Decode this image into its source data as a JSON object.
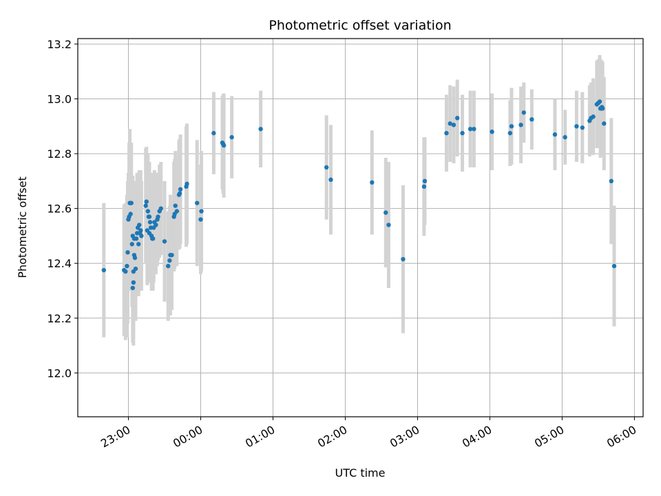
{
  "chart_data": {
    "type": "scatter",
    "title": "Photometric offset variation",
    "xlabel": "UTC time",
    "ylabel": "Photometric offset",
    "x_unit": "UTC hours (22:00 = 22, 06:00 = 30)",
    "xlim": [
      22.3,
      30.12
    ],
    "ylim": [
      11.84,
      13.22
    ],
    "grid": true,
    "legend": "none",
    "x_ticks": [
      {
        "value": 23,
        "label": "23:00"
      },
      {
        "value": 24,
        "label": "00:00"
      },
      {
        "value": 25,
        "label": "01:00"
      },
      {
        "value": 26,
        "label": "02:00"
      },
      {
        "value": 27,
        "label": "03:00"
      },
      {
        "value": 28,
        "label": "04:00"
      },
      {
        "value": 29,
        "label": "05:00"
      },
      {
        "value": 30,
        "label": "06:00"
      }
    ],
    "y_ticks": [
      {
        "value": 12.0,
        "label": "12.0"
      },
      {
        "value": 12.2,
        "label": "12.2"
      },
      {
        "value": 12.4,
        "label": "12.4"
      },
      {
        "value": 12.6,
        "label": "12.6"
      },
      {
        "value": 12.8,
        "label": "12.8"
      },
      {
        "value": 13.0,
        "label": "13.0"
      },
      {
        "value": 13.2,
        "label": "13.2"
      }
    ],
    "colors": {
      "marker": "#1f77b4",
      "errorbar": "#d3d3d3",
      "grid": "#b0b0b0"
    },
    "series": [
      {
        "points": [
          [
            22.66,
            12.375,
            0.245
          ],
          [
            22.94,
            12.375,
            0.24
          ],
          [
            22.96,
            12.37,
            0.25
          ],
          [
            22.98,
            12.39,
            0.26
          ],
          [
            22.99,
            12.44,
            0.26
          ],
          [
            23.0,
            12.56,
            0.17
          ],
          [
            23.01,
            12.57,
            0.27
          ],
          [
            23.02,
            12.62,
            0.27
          ],
          [
            23.03,
            12.58,
            0.23
          ],
          [
            23.04,
            12.62,
            0.22
          ],
          [
            23.05,
            12.47,
            0.23
          ],
          [
            23.06,
            12.5,
            0.22
          ],
          [
            23.06,
            12.31,
            0.2
          ],
          [
            23.07,
            12.37,
            0.22
          ],
          [
            23.07,
            12.33,
            0.23
          ],
          [
            23.08,
            12.43,
            0.2
          ],
          [
            23.08,
            12.49,
            0.21
          ],
          [
            23.09,
            12.42,
            0.2
          ],
          [
            23.1,
            12.38,
            0.19
          ],
          [
            23.11,
            12.49,
            0.2
          ],
          [
            23.12,
            12.51,
            0.22
          ],
          [
            23.13,
            12.53,
            0.18
          ],
          [
            23.14,
            12.47,
            0.19
          ],
          [
            23.15,
            12.54,
            0.2
          ],
          [
            23.16,
            12.51,
            0.17
          ],
          [
            23.17,
            12.52,
            0.22
          ],
          [
            23.18,
            12.5,
            0.2
          ],
          [
            23.24,
            12.61,
            0.21
          ],
          [
            23.25,
            12.625,
            0.2
          ],
          [
            23.26,
            12.52,
            0.2
          ],
          [
            23.27,
            12.59,
            0.21
          ],
          [
            23.28,
            12.57,
            0.19
          ],
          [
            23.29,
            12.51,
            0.18
          ],
          [
            23.29,
            12.57,
            0.2
          ],
          [
            23.3,
            12.55,
            0.18
          ],
          [
            23.31,
            12.53,
            0.2
          ],
          [
            23.32,
            12.5,
            0.2
          ],
          [
            23.33,
            12.49,
            0.18
          ],
          [
            23.34,
            12.49,
            0.19
          ],
          [
            23.35,
            12.53,
            0.2
          ],
          [
            23.36,
            12.55,
            0.19
          ],
          [
            23.38,
            12.54,
            0.18
          ],
          [
            23.4,
            12.56,
            0.17
          ],
          [
            23.41,
            12.57,
            0.16
          ],
          [
            23.43,
            12.59,
            0.17
          ],
          [
            23.45,
            12.6,
            0.17
          ],
          [
            23.5,
            12.48,
            0.22
          ],
          [
            23.55,
            12.39,
            0.2
          ],
          [
            23.57,
            12.41,
            0.2
          ],
          [
            23.58,
            12.43,
            0.22
          ],
          [
            23.6,
            12.43,
            0.2
          ],
          [
            23.63,
            12.57,
            0.2
          ],
          [
            23.64,
            12.58,
            0.2
          ],
          [
            23.65,
            12.61,
            0.2
          ],
          [
            23.67,
            12.59,
            0.2
          ],
          [
            23.7,
            12.65,
            0.2
          ],
          [
            23.71,
            12.655,
            0.2
          ],
          [
            23.72,
            12.67,
            0.2
          ],
          [
            23.8,
            12.68,
            0.22
          ],
          [
            23.81,
            12.69,
            0.22
          ],
          [
            23.95,
            12.62,
            0.23
          ],
          [
            24.0,
            12.56,
            0.2
          ],
          [
            24.01,
            12.59,
            0.22
          ],
          [
            24.18,
            12.875,
            0.15
          ],
          [
            24.3,
            12.84,
            0.17
          ],
          [
            24.31,
            12.835,
            0.18
          ],
          [
            24.32,
            12.83,
            0.19
          ],
          [
            24.43,
            12.86,
            0.15
          ],
          [
            24.83,
            12.89,
            0.14
          ],
          [
            25.74,
            12.75,
            0.19
          ],
          [
            25.8,
            12.705,
            0.2
          ],
          [
            26.37,
            12.695,
            0.19
          ],
          [
            26.56,
            12.585,
            0.2
          ],
          [
            26.6,
            12.54,
            0.23
          ],
          [
            26.8,
            12.415,
            0.27
          ],
          [
            27.09,
            12.68,
            0.18
          ],
          [
            27.1,
            12.7,
            0.16
          ],
          [
            27.4,
            12.875,
            0.14
          ],
          [
            27.45,
            12.91,
            0.14
          ],
          [
            27.5,
            12.905,
            0.14
          ],
          [
            27.55,
            12.93,
            0.14
          ],
          [
            27.62,
            12.875,
            0.14
          ],
          [
            27.73,
            12.89,
            0.14
          ],
          [
            27.78,
            12.89,
            0.14
          ],
          [
            28.03,
            12.88,
            0.14
          ],
          [
            28.28,
            12.875,
            0.12
          ],
          [
            28.3,
            12.9,
            0.14
          ],
          [
            28.43,
            12.905,
            0.14
          ],
          [
            28.47,
            12.95,
            0.11
          ],
          [
            28.58,
            12.925,
            0.11
          ],
          [
            28.9,
            12.87,
            0.13
          ],
          [
            29.04,
            12.86,
            0.1
          ],
          [
            29.2,
            12.9,
            0.13
          ],
          [
            29.28,
            12.895,
            0.13
          ],
          [
            29.38,
            12.92,
            0.13
          ],
          [
            29.4,
            12.93,
            0.13
          ],
          [
            29.43,
            12.935,
            0.14
          ],
          [
            29.48,
            12.98,
            0.16
          ],
          [
            29.5,
            12.985,
            0.16
          ],
          [
            29.52,
            12.99,
            0.17
          ],
          [
            29.53,
            12.965,
            0.18
          ],
          [
            29.54,
            12.965,
            0.17
          ],
          [
            29.55,
            12.97,
            0.17
          ],
          [
            29.56,
            12.965,
            0.17
          ],
          [
            29.58,
            12.91,
            0.17
          ],
          [
            29.68,
            12.7,
            0.23
          ],
          [
            29.72,
            12.39,
            0.22
          ]
        ]
      }
    ]
  }
}
